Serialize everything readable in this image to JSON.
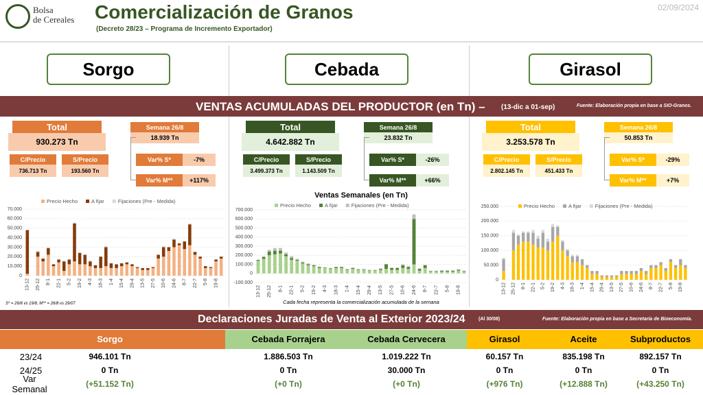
{
  "header": {
    "logo_line1": "Bolsa",
    "logo_line2": "de Cereales",
    "title": "Comercialización de Granos",
    "subtitle": "(Decreto 28/23 – Programa de Incremento Exportador)",
    "date": "02/09/2024"
  },
  "crops": [
    "Sorgo",
    "Cebada",
    "Girasol"
  ],
  "ventas": {
    "title": "VENTAS ACUMULADAS DEL PRODUCTOR (en Tn) –",
    "period": "(13-dic a 01-sep)",
    "source": "Fuente: Elaboración propia en base a SIO-Granos."
  },
  "summaries": [
    {
      "total_label": "Total",
      "total": "930.273 Tn",
      "c_label": "C/Precio",
      "c": "736.713 Tn",
      "s_label": "S/Precio",
      "s": "193.560 Tn",
      "week_label": "Semana 26/8",
      "week": "18.939 Tn",
      "vs_label": "Var% S*",
      "vs": "-7%",
      "vm_label": "Var% M**",
      "vm": "+117%"
    },
    {
      "total_label": "Total",
      "total": "4.642.882 Tn",
      "c_label": "C/Precio",
      "c": "3.499.373 Tn",
      "s_label": "S/Precio",
      "s": "1.143.509 Tn",
      "week_label": "Semana 26/8",
      "week": "23.832 Tn",
      "vs_label": "Var% S*",
      "vs": "-26%",
      "vm_label": "Var% M**",
      "vm": "+66%"
    },
    {
      "total_label": "Total",
      "total": "3.253.578 Tn",
      "c_label": "C/Precio",
      "c": "2.802.145 Tn",
      "s_label": "S/Precio",
      "s": "451.433 Tn",
      "week_label": "Semana 26/8",
      "week": "50.853 Tn",
      "vs_label": "Var% S*",
      "vs": "-29%",
      "vm_label": "Var% M**",
      "vm": "+7%"
    }
  ],
  "footnote": "S* = 26/8 vs 19/8, M** = 26/8 vs 29/07",
  "chart_data": [
    {
      "type": "bar",
      "stacked": true,
      "grid": true,
      "legend": "top",
      "categories": [
        "13-12",
        null,
        "25-12",
        null,
        "8-1",
        null,
        "22-1",
        null,
        "5-2",
        null,
        "19-2",
        null,
        "4-3",
        null,
        "18-3",
        null,
        "1-4",
        null,
        "15-4",
        null,
        "29-4",
        null,
        "13-5",
        null,
        "27-5",
        null,
        "10-6",
        null,
        "24-6",
        null,
        "8-7",
        null,
        "22-7",
        null,
        "5-8",
        null,
        "19-8",
        null
      ],
      "ylim": [
        0,
        70000
      ],
      "yticks": [
        0,
        {
          "value": 10000,
          "label": "10.000"
        },
        {
          "value": 20000,
          "label": "20.000"
        },
        {
          "value": 30000,
          "label": "30.000"
        },
        {
          "value": 40000,
          "label": "40.000"
        },
        {
          "value": 50000,
          "label": "50.000"
        },
        {
          "value": 60000,
          "label": "60.000"
        },
        {
          "value": 70000,
          "label": "70.000"
        }
      ],
      "series": [
        {
          "name": "Precio Hecho",
          "color": "#f4b183",
          "values": [
            2000,
            0,
            20000,
            15000,
            22000,
            10000,
            14000,
            5000,
            12000,
            15000,
            12000,
            12000,
            10000,
            8000,
            8000,
            10000,
            8000,
            8000,
            10000,
            12000,
            10000,
            8000,
            6000,
            6000,
            8000,
            18000,
            20000,
            26000,
            30000,
            32000,
            28000,
            32000,
            22000,
            18000,
            8000,
            8000,
            15000,
            18000
          ]
        },
        {
          "name": "A fijar",
          "color": "#843c0c",
          "values": [
            46000,
            0,
            5000,
            3000,
            7000,
            2000,
            3000,
            10000,
            5000,
            40000,
            12000,
            10000,
            5000,
            3000,
            12000,
            20000,
            5000,
            4000,
            3000,
            2000,
            2000,
            1000,
            2000,
            2000,
            1000,
            4000,
            10000,
            4000,
            8000,
            2000,
            8000,
            22000,
            3000,
            2000,
            2000,
            1000,
            2000,
            2000
          ]
        },
        {
          "name": "Fijaciones (Pre - Medida)",
          "color": "#d9d9d9",
          "values": [
            0,
            0,
            1000,
            0,
            1000,
            0,
            0,
            1000,
            0,
            1000,
            0,
            0,
            1000,
            0,
            0,
            1000,
            0,
            0,
            0,
            0,
            0,
            0,
            0,
            0,
            0,
            0,
            1000,
            0,
            1000,
            0,
            0,
            1000,
            0,
            0,
            0,
            0,
            0,
            0
          ]
        }
      ]
    },
    {
      "type": "bar",
      "stacked": true,
      "grid": true,
      "legend": "top",
      "title": "Ventas Semanales (en Tn)",
      "note": "Cada fecha representa la comercialización acumulada de la semana",
      "categories": [
        "13-12",
        null,
        "25-12",
        null,
        "8-1",
        null,
        "22-1",
        null,
        "5-2",
        null,
        "19-2",
        null,
        "4-3",
        null,
        "18-3",
        null,
        "1-4",
        null,
        "15-4",
        null,
        "29-4",
        null,
        "13-5",
        null,
        "27-5",
        null,
        "10-6",
        null,
        "24-6",
        null,
        "8-7",
        null,
        "22-7",
        null,
        "5-8",
        null,
        "19-8",
        null
      ],
      "ylim": [
        -100000,
        700000
      ],
      "yticks": [
        {
          "value": -100000,
          "label": "-100.000"
        },
        0,
        {
          "value": 100000,
          "label": "100.000"
        },
        {
          "value": 200000,
          "label": "200.000"
        },
        {
          "value": 300000,
          "label": "300.000"
        },
        {
          "value": 400000,
          "label": "400.000"
        },
        {
          "value": 500000,
          "label": "500.000"
        },
        {
          "value": 600000,
          "label": "600.000"
        },
        {
          "value": 700000,
          "label": "700.000"
        }
      ],
      "series": [
        {
          "name": "Precio Hecho",
          "color": "#a9d18e",
          "values": [
            140000,
            160000,
            200000,
            210000,
            220000,
            190000,
            150000,
            140000,
            110000,
            90000,
            80000,
            60000,
            60000,
            50000,
            60000,
            60000,
            40000,
            50000,
            40000,
            40000,
            30000,
            30000,
            40000,
            50000,
            40000,
            40000,
            60000,
            50000,
            100000,
            30000,
            60000,
            20000,
            20000,
            20000,
            20000,
            20000,
            30000,
            20000
          ]
        },
        {
          "name": "A fijar",
          "color": "#548235",
          "values": [
            10000,
            20000,
            40000,
            40000,
            30000,
            20000,
            20000,
            10000,
            10000,
            10000,
            10000,
            10000,
            5000,
            5000,
            10000,
            10000,
            5000,
            10000,
            5000,
            5000,
            5000,
            5000,
            10000,
            50000,
            20000,
            20000,
            30000,
            20000,
            500000,
            20000,
            30000,
            5000,
            5000,
            10000,
            10000,
            10000,
            10000,
            5000
          ]
        },
        {
          "name": "Fijaciones (Pre - Medida)",
          "color": "#bfbfbf",
          "values": [
            0,
            10000,
            20000,
            30000,
            30000,
            20000,
            20000,
            10000,
            10000,
            10000,
            5000,
            5000,
            5000,
            5000,
            5000,
            5000,
            5000,
            5000,
            5000,
            5000,
            5000,
            5000,
            5000,
            5000,
            5000,
            5000,
            10000,
            10000,
            50000,
            5000,
            5000,
            5000,
            5000,
            5000,
            5000,
            5000,
            5000,
            5000
          ]
        }
      ]
    },
    {
      "type": "bar",
      "stacked": true,
      "grid": true,
      "legend": "top",
      "categories": [
        "13-12",
        null,
        "25-12",
        null,
        "8-1",
        null,
        "22-1",
        null,
        "5-2",
        null,
        "19-2",
        null,
        "4-3",
        null,
        "18-3",
        null,
        "1-4",
        null,
        "15-4",
        null,
        "29-4",
        null,
        "13-5",
        null,
        "27-5",
        null,
        "10-6",
        null,
        "24-6",
        null,
        "8-7",
        null,
        "22-7",
        null,
        "5-8",
        null,
        "19-8",
        null
      ],
      "ylim": [
        0,
        250000
      ],
      "yticks": [
        0,
        {
          "value": 50000,
          "label": "50.000"
        },
        {
          "value": 100000,
          "label": "100.000"
        },
        {
          "value": 150000,
          "label": "150.000"
        },
        {
          "value": 200000,
          "label": "200.000"
        },
        {
          "value": 250000,
          "label": "250.000"
        }
      ],
      "series": [
        {
          "name": "Precio Hecho",
          "color": "#ffc000",
          "values": [
            30000,
            0,
            100000,
            120000,
            130000,
            130000,
            120000,
            110000,
            110000,
            100000,
            130000,
            150000,
            100000,
            80000,
            60000,
            60000,
            50000,
            40000,
            20000,
            20000,
            10000,
            10000,
            10000,
            10000,
            20000,
            20000,
            20000,
            20000,
            30000,
            20000,
            40000,
            40000,
            50000,
            30000,
            60000,
            40000,
            50000,
            40000
          ]
        },
        {
          "name": "A fijar",
          "color": "#a6a6a6",
          "values": [
            40000,
            0,
            60000,
            30000,
            30000,
            30000,
            40000,
            30000,
            50000,
            30000,
            50000,
            30000,
            30000,
            20000,
            20000,
            20000,
            20000,
            10000,
            10000,
            10000,
            5000,
            5000,
            5000,
            5000,
            10000,
            10000,
            10000,
            10000,
            10000,
            10000,
            10000,
            10000,
            10000,
            10000,
            10000,
            10000,
            20000,
            10000
          ]
        },
        {
          "name": "Fijaciones (Pre - Medida)",
          "color": "#d9d9d9",
          "values": [
            5000,
            0,
            10000,
            5000,
            5000,
            5000,
            10000,
            10000,
            10000,
            10000,
            10000,
            5000,
            5000,
            5000,
            5000,
            5000,
            0,
            0,
            0,
            0,
            0,
            0,
            0,
            0,
            0,
            0,
            0,
            0,
            0,
            0,
            0,
            0,
            0,
            0,
            0,
            0,
            0,
            0
          ]
        }
      ]
    }
  ],
  "djve": {
    "title": "Declaraciones Juradas de Venta al Exterior 2023/24",
    "asof": "(Al 30/08)",
    "source": "Fuente: Elaboración propia en base a Secretaría de Bioeconomía.",
    "columns": [
      "Sorgo",
      "Cebada Forrajera",
      "Cebada Cervecera",
      "Girasol",
      "Aceite",
      "Subproductos"
    ],
    "rows": [
      {
        "label": "23/24",
        "values": [
          "946.101 Tn",
          "1.886.503 Tn",
          "1.019.222 Tn",
          "60.157 Tn",
          "835.198 Tn",
          "892.157 Tn"
        ]
      },
      {
        "label": "24/25",
        "values": [
          "0 Tn",
          "0 Tn",
          "30.000 Tn",
          "0 Tn",
          "0 Tn",
          "0 Tn"
        ]
      },
      {
        "label": "Var Semanal",
        "values": [
          "(+51.152 Tn)",
          "(+0 Tn)",
          "(+0 Tn)",
          "(+976 Tn)",
          "(+12.888 Tn)",
          "(+43.250 Tn)"
        ]
      }
    ]
  }
}
